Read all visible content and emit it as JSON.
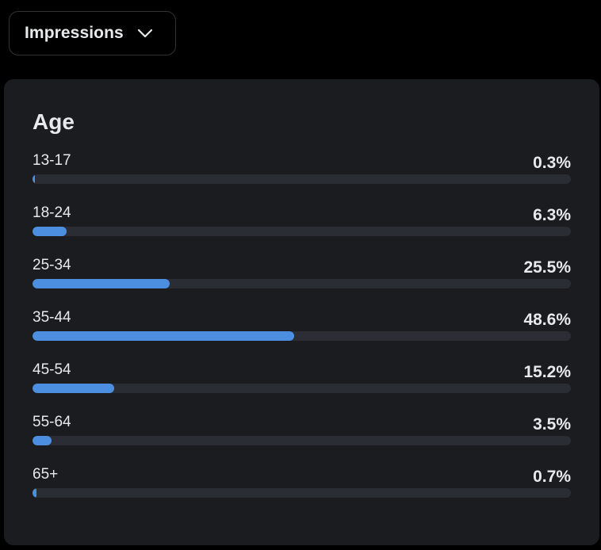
{
  "dropdown": {
    "label": "Impressions",
    "icon": "chevron-down-icon"
  },
  "card": {
    "title": "Age"
  },
  "colors": {
    "bar": "#4c8fe0",
    "track": "#2a2d33",
    "card": "#1b1c20"
  },
  "age_groups": [
    {
      "label": "13-17",
      "value": "0.3%",
      "percent": 0.3
    },
    {
      "label": "18-24",
      "value": "6.3%",
      "percent": 6.3
    },
    {
      "label": "25-34",
      "value": "25.5%",
      "percent": 25.5
    },
    {
      "label": "35-44",
      "value": "48.6%",
      "percent": 48.6
    },
    {
      "label": "45-54",
      "value": "15.2%",
      "percent": 15.2
    },
    {
      "label": "55-64",
      "value": "3.5%",
      "percent": 3.5
    },
    {
      "label": "65+",
      "value": "0.7%",
      "percent": 0.7
    }
  ]
}
